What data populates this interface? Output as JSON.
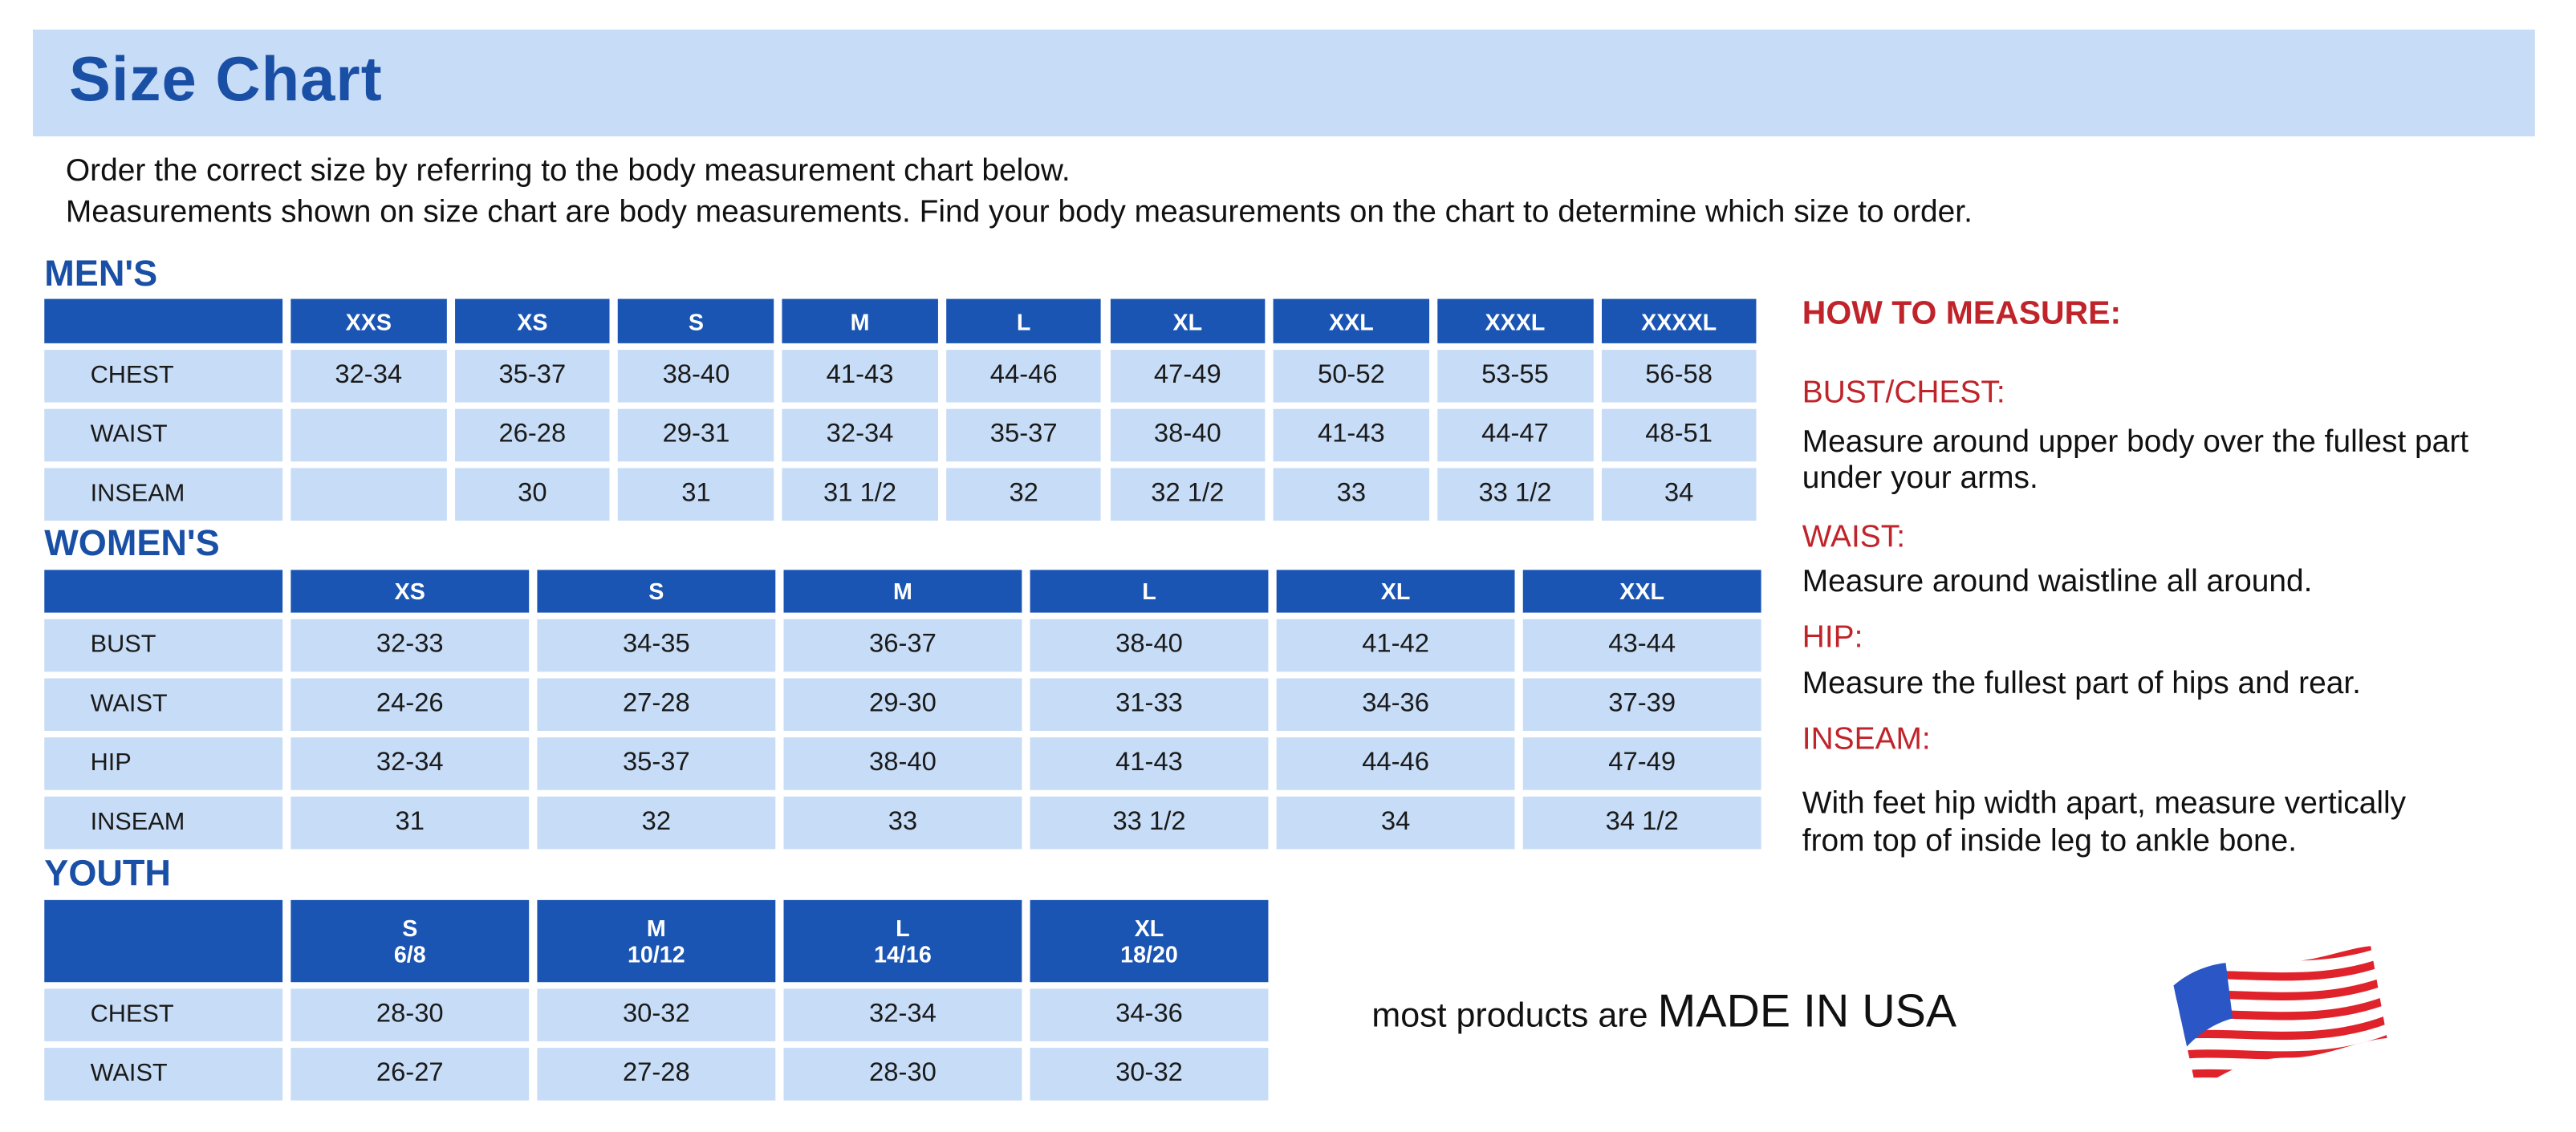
{
  "title": "Size Chart",
  "intro": [
    "Order the correct size by referring to the body measurement chart below.",
    "Measurements shown on size chart are body measurements.  Find your body measurements on the chart to determine which size to order."
  ],
  "colors": {
    "accent_blue": "#1a55b4",
    "cell_blue": "#c7dcf6",
    "measure_red": "#c0242b"
  },
  "mens": {
    "heading": "MEN'S",
    "sizes": [
      "XXS",
      "XS",
      "S",
      "M",
      "L",
      "XL",
      "XXL",
      "XXXL",
      "XXXXL"
    ],
    "rows": [
      {
        "label": "CHEST",
        "values": [
          "32-34",
          "35-37",
          "38-40",
          "41-43",
          "44-46",
          "47-49",
          "50-52",
          "53-55",
          "56-58"
        ]
      },
      {
        "label": "WAIST",
        "values": [
          "",
          "26-28",
          "29-31",
          "32-34",
          "35-37",
          "38-40",
          "41-43",
          "44-47",
          "48-51"
        ]
      },
      {
        "label": "INSEAM",
        "values": [
          "",
          "30",
          "31",
          "31 1/2",
          "32",
          "32 1/2",
          "33",
          "33 1/2",
          "34"
        ]
      }
    ]
  },
  "womens": {
    "heading": "WOMEN'S",
    "sizes": [
      "XS",
      "S",
      "M",
      "L",
      "XL",
      "XXL"
    ],
    "rows": [
      {
        "label": "BUST",
        "values": [
          "32-33",
          "34-35",
          "36-37",
          "38-40",
          "41-42",
          "43-44"
        ]
      },
      {
        "label": "WAIST",
        "values": [
          "24-26",
          "27-28",
          "29-30",
          "31-33",
          "34-36",
          "37-39"
        ]
      },
      {
        "label": "HIP",
        "values": [
          "32-34",
          "35-37",
          "38-40",
          "41-43",
          "44-46",
          "47-49"
        ]
      },
      {
        "label": "INSEAM",
        "values": [
          "31",
          "32",
          "33",
          "33 1/2",
          "34",
          "34 1/2"
        ]
      }
    ]
  },
  "youth": {
    "heading": "YOUTH",
    "sizes": [
      {
        "size": "S",
        "range": "6/8"
      },
      {
        "size": "M",
        "range": "10/12"
      },
      {
        "size": "L",
        "range": "14/16"
      },
      {
        "size": "XL",
        "range": "18/20"
      }
    ],
    "rows": [
      {
        "label": "CHEST",
        "values": [
          "28-30",
          "30-32",
          "32-34",
          "34-36"
        ]
      },
      {
        "label": "WAIST",
        "values": [
          "26-27",
          "27-28",
          "28-30",
          "30-32"
        ]
      }
    ]
  },
  "how_to_measure": {
    "heading": "HOW TO MEASURE:",
    "items": [
      {
        "title": "BUST/CHEST:",
        "text": "Measure around upper body over the fullest part under your arms."
      },
      {
        "title": "WAIST:",
        "text": "Measure around waistline all around."
      },
      {
        "title": "HIP:",
        "text": "Measure the fullest part of hips and rear."
      },
      {
        "title": "INSEAM:",
        "text": "With feet hip width apart, measure vertically from top of inside leg to ankle bone."
      }
    ]
  },
  "made_in_usa": {
    "prefix": "most products are",
    "emphasis": "MADE IN USA",
    "flag_icon": "us-flag-icon"
  }
}
